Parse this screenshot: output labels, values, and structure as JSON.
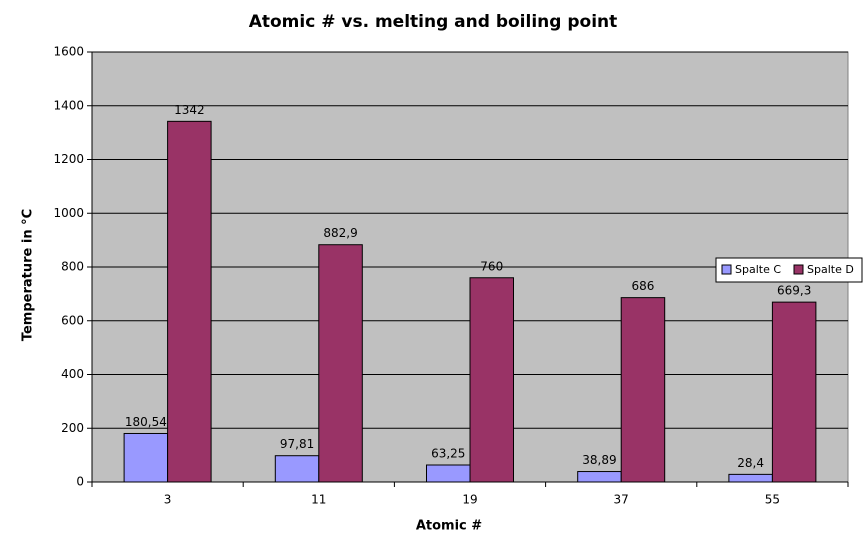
{
  "chart_data": {
    "type": "bar",
    "title": "Atomic # vs. melting and boiling point",
    "x_label": "Atomic #",
    "y_label": "Temperature in °C",
    "categories": [
      "3",
      "11",
      "19",
      "37",
      "55"
    ],
    "series": [
      {
        "name": "Spalte C",
        "color": "#9999ff",
        "values": [
          180.54,
          97.81,
          63.25,
          38.89,
          28.4
        ],
        "value_labels": [
          "180,54",
          "97,81",
          "63,25",
          "38,89",
          "28,4"
        ]
      },
      {
        "name": "Spalte D",
        "color": "#993366",
        "values": [
          1342,
          882.9,
          760,
          686,
          669.3
        ],
        "value_labels": [
          "1342",
          "882,9",
          "760",
          "686",
          "669,3"
        ]
      }
    ],
    "ylim": [
      0,
      1600
    ],
    "yticks": [
      0,
      200,
      400,
      600,
      800,
      1000,
      1200,
      1400,
      1600
    ],
    "grid": true,
    "legend": "right",
    "plot_background": "#c0c0c0"
  }
}
